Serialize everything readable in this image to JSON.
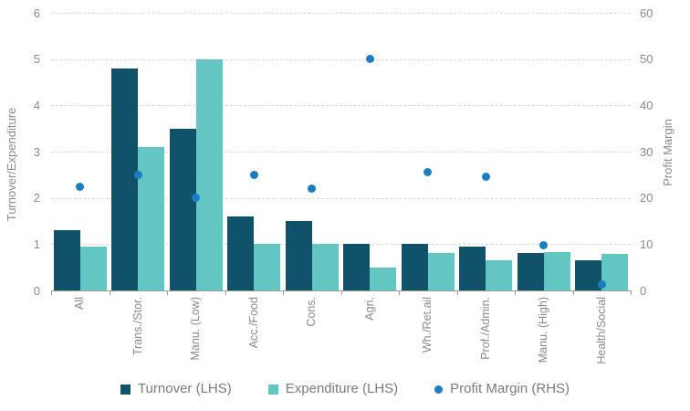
{
  "chart_data": {
    "type": "bar",
    "subtype": "grouped bars with scatter overlay (dual axis combo)",
    "categories": [
      "All",
      "Trans./Stor.",
      "Manu. (Low)",
      "Acc./Food",
      "Cons.",
      "Agri.",
      "Wh./Ret.ail",
      "Prof./Admin.",
      "Manu. (High)",
      "Health/Social"
    ],
    "series": [
      {
        "name": "Turnover (LHS)",
        "type": "bar",
        "axis": "left",
        "color": "#0f5269",
        "values": [
          1.3,
          4.8,
          3.5,
          1.6,
          1.5,
          1.0,
          1.0,
          0.95,
          0.8,
          0.65
        ]
      },
      {
        "name": "Expenditure (LHS)",
        "type": "bar",
        "axis": "left",
        "color": "#62c6c2",
        "values": [
          0.95,
          3.1,
          5.0,
          1.0,
          1.0,
          0.5,
          0.8,
          0.65,
          0.82,
          0.78
        ]
      },
      {
        "name": "Profit Margin (RHS)",
        "type": "scatter",
        "axis": "right",
        "color": "#1b7ec2",
        "values": [
          22.5,
          25,
          20,
          25,
          22,
          50,
          25.5,
          24.5,
          9.7,
          1.2
        ]
      }
    ],
    "left_axis": {
      "label": "Turnover/Expenditure",
      "min": 0,
      "max": 6,
      "ticks": [
        0,
        1,
        2,
        3,
        4,
        5,
        6
      ]
    },
    "right_axis": {
      "label": "Profit Margin",
      "min": 0,
      "max": 60,
      "ticks": [
        0,
        10,
        20,
        30,
        40,
        50,
        60
      ]
    },
    "title": "",
    "grid": {
      "horizontal": true,
      "style": "dashed",
      "color": "#d8d8d8"
    },
    "axis_color": "#9b9b9b",
    "text_color": "#8a8a8a",
    "legend_position": "bottom",
    "x_tick_label_rotation": -90
  }
}
